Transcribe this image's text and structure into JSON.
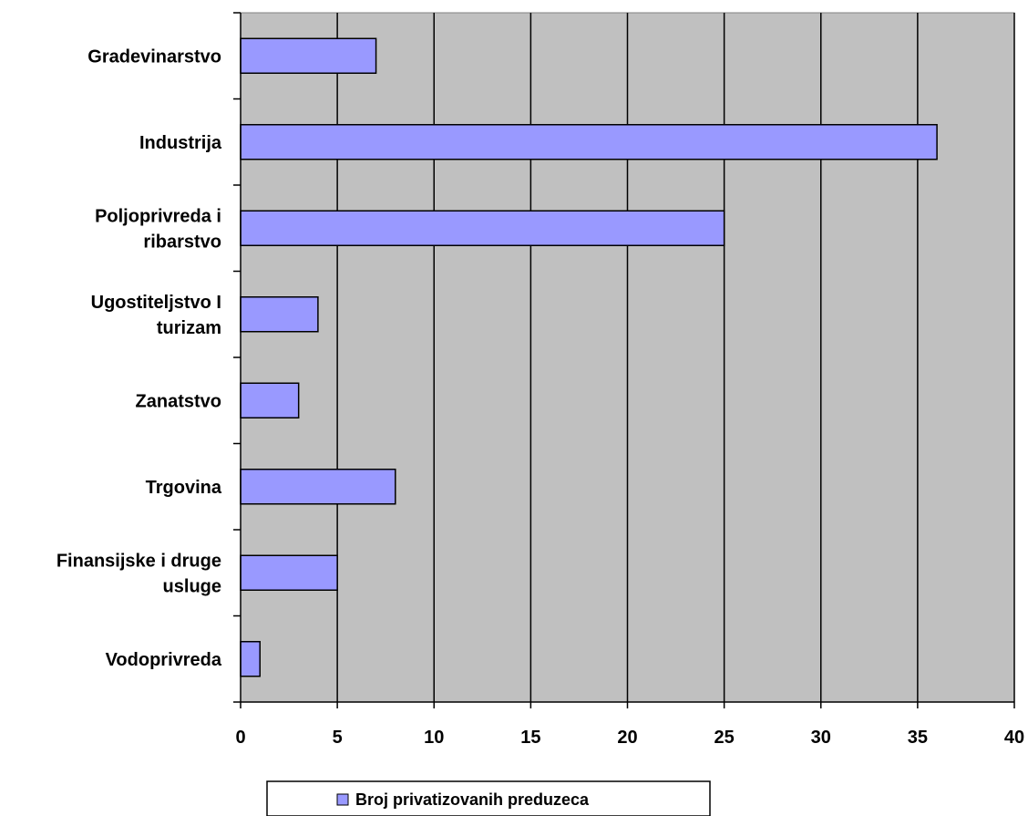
{
  "chart_data": {
    "type": "bar",
    "orientation": "horizontal",
    "title": "",
    "xlabel": "",
    "ylabel": "",
    "categories": [
      [
        "Gradevinarstvo"
      ],
      [
        "Industrija"
      ],
      [
        "Poljoprivreda i",
        "ribarstvo"
      ],
      [
        "Ugostiteljstvo I",
        "turizam"
      ],
      [
        "Zanatstvo"
      ],
      [
        "Trgovina"
      ],
      [
        "Finansijske i druge",
        "usluge"
      ],
      [
        "Vodoprivreda"
      ]
    ],
    "series": [
      {
        "name": "Broj privatizovanih preduzeca",
        "values": [
          7,
          36,
          25,
          4,
          3,
          8,
          5,
          1
        ],
        "color": "#9999ff"
      }
    ],
    "xlim": [
      0,
      40
    ],
    "xticks": [
      "0",
      "5",
      "10",
      "15",
      "20",
      "25",
      "30",
      "35",
      "40"
    ],
    "grid": "vertical",
    "plot_background": "#c0c0c0",
    "legend_position": "bottom"
  }
}
